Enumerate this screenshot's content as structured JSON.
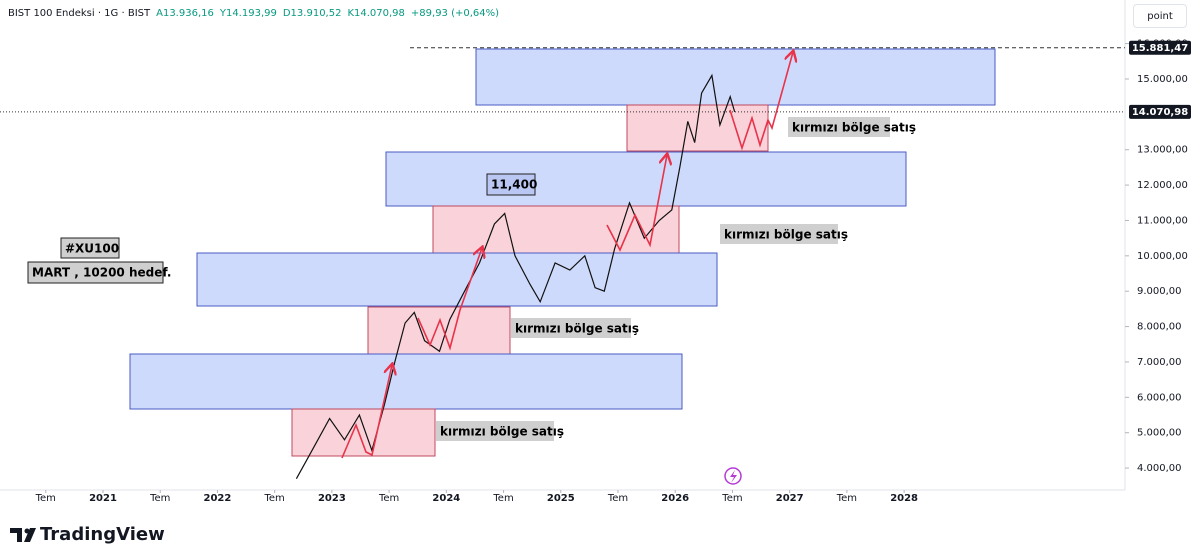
{
  "chart_data": {
    "type": "line",
    "header": {
      "symbol": "BIST 100 Endeksi · 1G · BIST",
      "open": "A13.936,16",
      "high": "Y14.193,99",
      "low": "D13.910,52",
      "close": "K14.070,98",
      "change": "+89,93 (+0,64%)"
    },
    "button": "point",
    "color": "#111111",
    "x": [
      2022.69,
      2022.81,
      2022.98,
      2023.11,
      2023.24,
      2023.35,
      2023.46,
      2023.55,
      2023.64,
      2023.72,
      2023.81,
      2023.94,
      2024.03,
      2024.16,
      2024.29,
      2024.42,
      2024.51,
      2024.6,
      2024.73,
      2024.82,
      2024.95,
      2025.08,
      2025.21,
      2025.3,
      2025.38,
      2025.47,
      2025.6,
      2025.73,
      2025.86,
      2025.97,
      2026.04,
      2026.11,
      2026.17,
      2026.23,
      2026.32,
      2026.39,
      2026.48,
      2026.52
    ],
    "values": [
      3700,
      4400,
      5400,
      4800,
      5500,
      4500,
      5800,
      7000,
      8100,
      8400,
      7600,
      7300,
      8200,
      9000,
      9800,
      10900,
      11200,
      10000,
      9200,
      8700,
      9800,
      9600,
      10000,
      9100,
      9000,
      10200,
      11500,
      10500,
      11000,
      11300,
      12500,
      13800,
      13200,
      14600,
      15100,
      13700,
      14500,
      14070
    ],
    "xlim": [
      2020.1,
      2029.93
    ],
    "ylim": [
      3380,
      16950
    ],
    "xticks": [
      {
        "value": 2020.5,
        "label": "Tem"
      },
      2021,
      {
        "value": 2021.5,
        "label": "Tem"
      },
      2022,
      {
        "value": 2022.5,
        "label": "Tem"
      },
      2023,
      {
        "value": 2023.5,
        "label": "Tem"
      },
      2024,
      {
        "value": 2024.5,
        "label": "Tem"
      },
      2025,
      {
        "value": 2025.5,
        "label": "Tem"
      },
      2026,
      {
        "value": 2026.5,
        "label": "Tem"
      },
      2027,
      {
        "value": 2027.5,
        "label": "Tem"
      },
      2028
    ],
    "yticks": [
      {
        "value": 4000,
        "label": "4.000,00"
      },
      {
        "value": 5000,
        "label": "5.000,00"
      },
      {
        "value": 6000,
        "label": "6.000,00"
      },
      {
        "value": 7000,
        "label": "7.000,00"
      },
      {
        "value": 8000,
        "label": "8.000,00"
      },
      {
        "value": 9000,
        "label": "9.000,00"
      },
      {
        "value": 10000,
        "label": "10.000,00"
      },
      {
        "value": 11000,
        "label": "11.000,00"
      },
      {
        "value": 12000,
        "label": "12.000,00"
      },
      {
        "value": 13000,
        "label": "13.000,00"
      },
      {
        "value": 15000,
        "label": "15.000,00"
      },
      {
        "value": 16000,
        "label": "16.000,00"
      }
    ],
    "price_lines": [
      {
        "value": 15881.47,
        "label": "15.881,47"
      },
      {
        "value": 14070.98,
        "label": "14.070,98"
      }
    ],
    "annotations": [
      "kırmızı bölge satış",
      "kırmızı bölge satış",
      "kırmızı bölge satış",
      "kırmızı bölge satış",
      "11,400",
      "#XU100",
      "MART , 10200 hedef."
    ],
    "logo": "TradingView"
  }
}
